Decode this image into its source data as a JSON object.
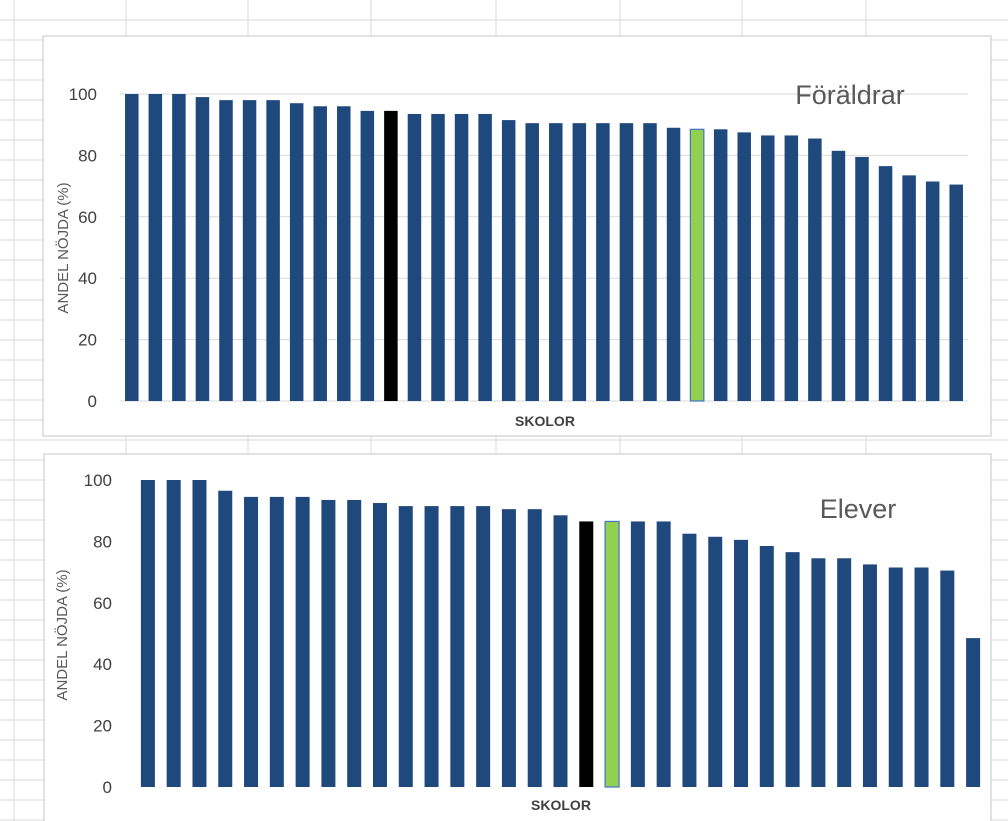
{
  "colors": {
    "bar_default": "#1f497d",
    "bar_black": "#000000",
    "bar_green": "#92d050",
    "bar_green_outline": "#4472c4"
  },
  "chart_data": [
    {
      "type": "bar",
      "title": "Föräldrar",
      "xlabel": "SKOLOR",
      "ylabel": "ANDEL NÖJDA (%)",
      "ylim": [
        0,
        100
      ],
      "yticks": [
        "0",
        "20",
        "40",
        "60",
        "80",
        "100"
      ],
      "grid": true,
      "values": [
        100,
        100,
        100,
        99,
        98,
        98,
        98,
        97,
        96,
        96,
        94.5,
        94.5,
        93.5,
        93.5,
        93.5,
        93.5,
        91.5,
        90.5,
        90.5,
        90.5,
        90.5,
        90.5,
        90.5,
        89,
        88.5,
        88.5,
        87.5,
        86.5,
        86.5,
        85.5,
        81.5,
        79.5,
        76.5,
        73.5,
        71.5,
        70.5
      ],
      "highlights": [
        {
          "index": 11,
          "color": "black"
        },
        {
          "index": 24,
          "color": "green"
        }
      ]
    },
    {
      "type": "bar",
      "title": "Elever",
      "xlabel": "SKOLOR",
      "ylabel": "ANDEL NÖJDA (%)",
      "ylim": [
        0,
        100
      ],
      "yticks": [
        "0",
        "20",
        "40",
        "60",
        "80",
        "100"
      ],
      "grid": false,
      "values": [
        100,
        100,
        100,
        96.5,
        94.5,
        94.5,
        94.5,
        93.5,
        93.5,
        92.5,
        91.5,
        91.5,
        91.5,
        91.5,
        90.5,
        90.5,
        88.5,
        86.5,
        86.5,
        86.5,
        86.5,
        82.5,
        81.5,
        80.5,
        78.5,
        76.5,
        74.5,
        74.5,
        72.5,
        71.5,
        71.5,
        70.5,
        48.5
      ],
      "highlights": [
        {
          "index": 17,
          "color": "black"
        },
        {
          "index": 18,
          "color": "green"
        }
      ]
    }
  ]
}
